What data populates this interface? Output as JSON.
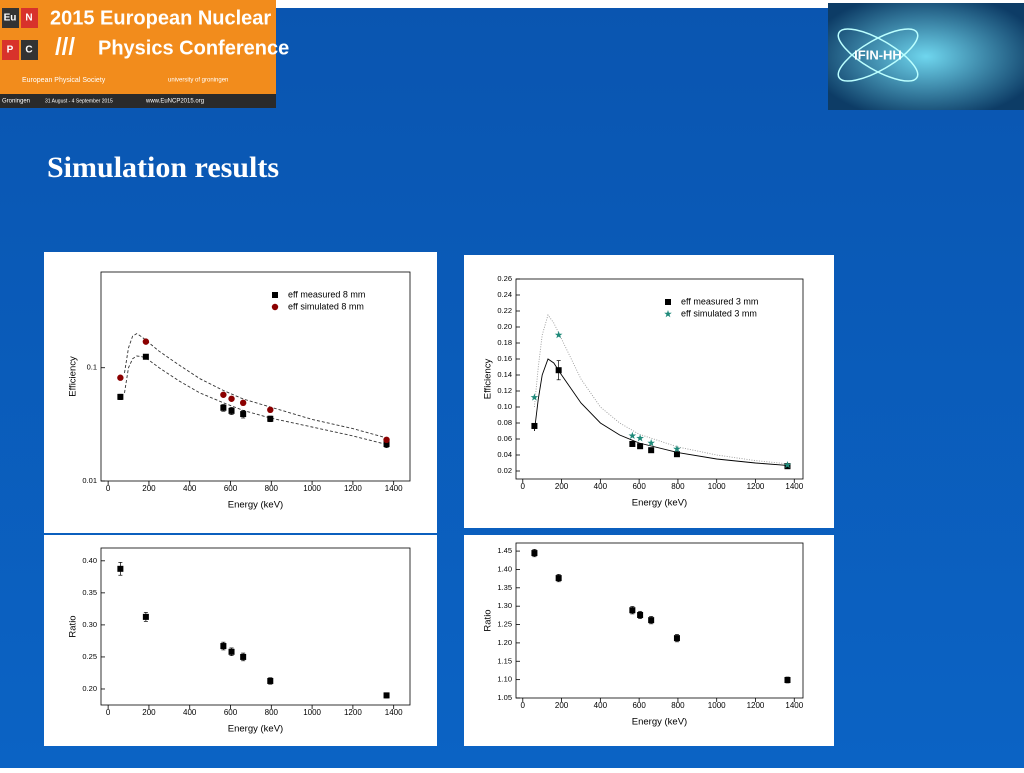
{
  "slide": {
    "title": "Simulation results"
  },
  "logos": {
    "euncp": {
      "letters": [
        "Eu",
        "N",
        "P",
        "C"
      ],
      "line1": "2015 European Nuclear",
      "line2": "Physics Conference",
      "society": "European Physical Society",
      "university": "university of groningen",
      "city": "Groningen",
      "dates": "31 August - 4 September 2015",
      "url": "www.EuNCP2015.org"
    },
    "ifin": "IFIN-HH"
  },
  "chart_data": [
    {
      "type": "scatter",
      "ylabel": "Efficiency",
      "xlabel": "Energy (keV)",
      "log_y": true,
      "legend": "upper right",
      "xlim": [
        -35,
        1480
      ],
      "xticks": [
        0,
        200,
        400,
        600,
        800,
        1000,
        1200,
        1400
      ],
      "ylim": [
        0.01,
        0.7
      ],
      "yticks": [
        0.01,
        0.1
      ],
      "x": [
        60,
        185,
        565,
        605,
        662,
        795,
        1365
      ],
      "series": [
        {
          "name": "eff measured 8 mm",
          "marker": "square",
          "color": "#000000",
          "values": [
            0.0553,
            0.125,
            0.0443,
            0.0416,
            0.039,
            0.0354,
            0.0212
          ],
          "errors": [
            0.003,
            0.006,
            0.003,
            0.003,
            0.003,
            0.002,
            0.0015
          ]
        },
        {
          "name": "eff simulated 8 mm",
          "marker": "circle",
          "color": "#8b0000",
          "values": [
            0.0816,
            0.17,
            0.0577,
            0.0532,
            0.049,
            0.0425,
            0.0231
          ]
        }
      ],
      "curves": [
        {
          "style": "dashed",
          "color": "#333333",
          "x": [
            80,
            100,
            120,
            140,
            160,
            185,
            250,
            350,
            450,
            565,
            662,
            795,
            1000,
            1200,
            1365
          ],
          "values": [
            0.06,
            0.1,
            0.12,
            0.127,
            0.126,
            0.122,
            0.1,
            0.076,
            0.06,
            0.049,
            0.042,
            0.036,
            0.03,
            0.025,
            0.021
          ]
        },
        {
          "style": "dashed",
          "color": "#333333",
          "x": [
            80,
            100,
            120,
            140,
            160,
            185,
            250,
            350,
            450,
            565,
            662,
            795,
            1000,
            1200,
            1365
          ],
          "values": [
            0.09,
            0.15,
            0.19,
            0.2,
            0.19,
            0.175,
            0.14,
            0.105,
            0.08,
            0.063,
            0.053,
            0.045,
            0.035,
            0.029,
            0.024
          ]
        }
      ]
    },
    {
      "type": "scatter",
      "ylabel": "Efficiency",
      "xlabel": "Energy (keV)",
      "log_y": false,
      "legend": "upper right",
      "xlim": [
        -35,
        1445
      ],
      "xticks": [
        0,
        200,
        400,
        600,
        800,
        1000,
        1200,
        1400
      ],
      "ylim": [
        0.01,
        0.26
      ],
      "yticks": [
        0.02,
        0.04,
        0.06,
        0.08,
        {
          "value": 0.1,
          "label": "0.10"
        },
        0.12,
        0.14,
        0.16,
        0.18,
        {
          "value": 0.2,
          "label": "0.20"
        },
        0.22,
        0.24,
        0.26
      ],
      "x": [
        60,
        185,
        565,
        605,
        662,
        795,
        1365
      ],
      "series": [
        {
          "name": "eff measured 3 mm",
          "marker": "square",
          "color": "#000000",
          "values": [
            0.0763,
            0.146,
            0.0538,
            0.051,
            0.046,
            0.041,
            0.026
          ],
          "errors": [
            0.003,
            0.012,
            0.003,
            0.003,
            0.003,
            0.003,
            0.002
          ]
        },
        {
          "name": "eff simulated 3 mm",
          "marker": "star",
          "color": "#1f8a7a",
          "values": [
            0.112,
            0.19,
            0.064,
            0.061,
            0.055,
            0.0475,
            0.0275
          ]
        }
      ],
      "curves": [
        {
          "style": "solid",
          "color": "#000000",
          "x": [
            60,
            80,
            100,
            130,
            160,
            200,
            300,
            400,
            500,
            600,
            800,
            1000,
            1200,
            1365
          ],
          "values": [
            0.07,
            0.11,
            0.14,
            0.16,
            0.155,
            0.14,
            0.105,
            0.08,
            0.065,
            0.055,
            0.043,
            0.035,
            0.03,
            0.027
          ]
        },
        {
          "style": "dotted",
          "color": "#999999",
          "x": [
            60,
            80,
            100,
            130,
            160,
            200,
            300,
            400,
            500,
            600,
            800,
            1000,
            1200,
            1365
          ],
          "values": [
            0.1,
            0.15,
            0.19,
            0.215,
            0.205,
            0.185,
            0.135,
            0.1,
            0.08,
            0.066,
            0.05,
            0.04,
            0.033,
            0.029
          ]
        }
      ]
    },
    {
      "type": "scatter",
      "ylabel": "Ratio",
      "xlabel": "Energy (keV)",
      "log_y": false,
      "xlim": [
        -35,
        1480
      ],
      "xticks": [
        0,
        200,
        400,
        600,
        800,
        1000,
        1200,
        1400
      ],
      "ylim": [
        0.175,
        0.42
      ],
      "yticks": [
        {
          "value": 0.2,
          "label": "0.20"
        },
        0.25,
        {
          "value": 0.3,
          "label": "0.30"
        },
        0.35,
        {
          "value": 0.4,
          "label": "0.40"
        }
      ],
      "x": [
        60,
        185,
        565,
        605,
        662,
        795,
        1365
      ],
      "series": [
        {
          "marker": "square",
          "color": "#000000",
          "values": [
            0.3875,
            0.3125,
            0.267,
            0.258,
            0.25,
            0.2125,
            0.19
          ],
          "errors": [
            0.01,
            0.007,
            0.006,
            0.006,
            0.006,
            0.005,
            0.004
          ]
        }
      ]
    },
    {
      "type": "scatter",
      "ylabel": "Ratio",
      "xlabel": "Energy (keV)",
      "log_y": false,
      "xlim": [
        -35,
        1445
      ],
      "xticks": [
        0,
        200,
        400,
        600,
        800,
        1000,
        1200,
        1400
      ],
      "ylim": [
        1.05,
        1.472
      ],
      "yticks": [
        1.05,
        {
          "value": 1.1,
          "label": "1.10"
        },
        1.15,
        {
          "value": 1.2,
          "label": "1.20"
        },
        1.25,
        {
          "value": 1.3,
          "label": "1.30"
        },
        1.35,
        {
          "value": 1.4,
          "label": "1.40"
        },
        1.45
      ],
      "x": [
        60,
        185,
        565,
        605,
        662,
        795,
        1365
      ],
      "series": [
        {
          "marker": "square",
          "color": "#000000",
          "values": [
            1.4446,
            1.3765,
            1.289,
            1.276,
            1.262,
            1.213,
            1.099
          ],
          "errors": [
            0.01,
            0.01,
            0.01,
            0.01,
            0.01,
            0.01,
            0.008
          ]
        }
      ]
    }
  ]
}
